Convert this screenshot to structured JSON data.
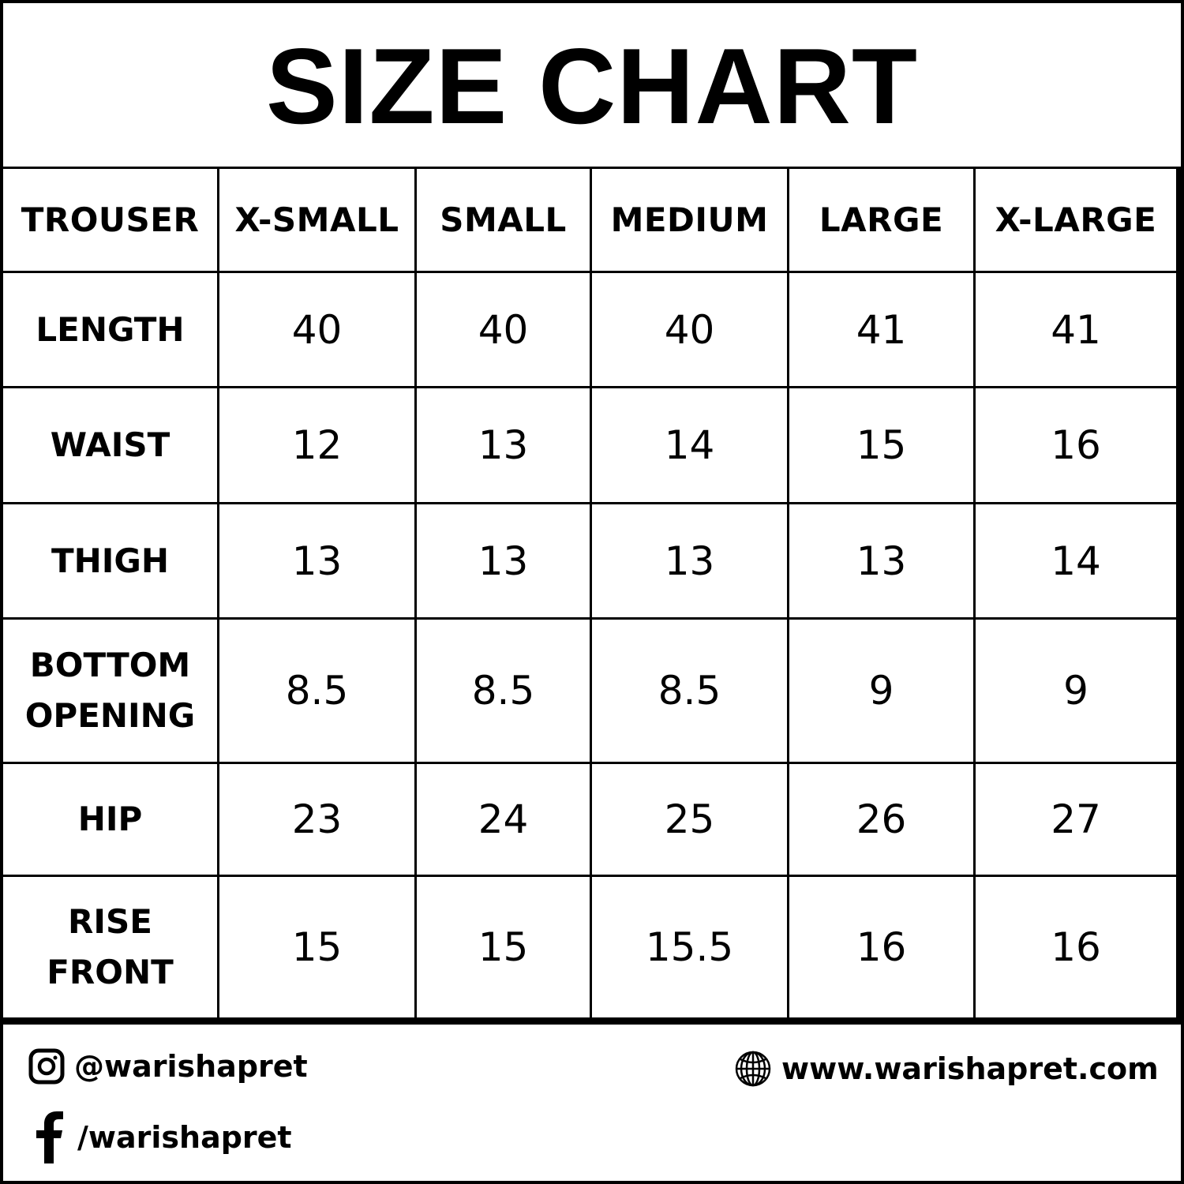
{
  "title": "SIZE CHART",
  "table": {
    "corner": "TROUSER",
    "columns": [
      "X-SMALL",
      "SMALL",
      "MEDIUM",
      "LARGE",
      "X-LARGE"
    ],
    "rows": [
      {
        "label": "LENGTH",
        "values": [
          "40",
          "40",
          "40",
          "41",
          "41"
        ]
      },
      {
        "label": "WAIST",
        "values": [
          "12",
          "13",
          "14",
          "15",
          "16"
        ]
      },
      {
        "label": "THIGH",
        "values": [
          "13",
          "13",
          "13",
          "13",
          "14"
        ]
      },
      {
        "label": "BOTTOM\nOPENING",
        "values": [
          "8.5",
          "8.5",
          "8.5",
          "9",
          "9"
        ]
      },
      {
        "label": "HIP",
        "values": [
          "23",
          "24",
          "25",
          "26",
          "27"
        ]
      },
      {
        "label": "RISE\nFRONT",
        "values": [
          "15",
          "15",
          "15.5",
          "16",
          "16"
        ]
      }
    ]
  },
  "footer": {
    "instagram": {
      "icon": "instagram-icon",
      "text": "@warishapret"
    },
    "facebook": {
      "icon": "facebook-icon",
      "text": "/warishapret"
    },
    "website": {
      "icon": "globe-icon",
      "text": "www.warishapret.com"
    }
  }
}
